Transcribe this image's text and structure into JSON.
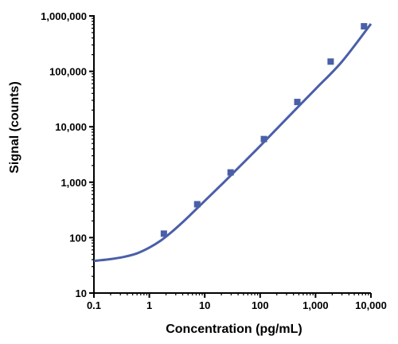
{
  "chart_data": {
    "type": "scatter",
    "title": "",
    "xlabel": "Concentration (pg/mL)",
    "ylabel": "Signal (counts)",
    "xscale": "log",
    "yscale": "log",
    "xlim": [
      0.1,
      10000
    ],
    "ylim": [
      10,
      1000000
    ],
    "x_ticks": [
      0.1,
      1,
      10,
      100,
      1000,
      10000
    ],
    "x_tick_labels": [
      "0.1",
      "1",
      "10",
      "100",
      "1,000",
      "10,000"
    ],
    "y_ticks": [
      10,
      100,
      1000,
      10000,
      100000,
      1000000
    ],
    "y_tick_labels": [
      "10",
      "100",
      "1,000",
      "10,000",
      "100,000",
      "1,000,000"
    ],
    "grid": false,
    "legend": "none",
    "colors": {
      "series": "#4a5fa8",
      "axis": "#000000"
    },
    "series": [
      {
        "type": "scatter",
        "x": [
          1.83,
          7.32,
          29.3,
          117,
          469,
          1875,
          7500
        ],
        "y": [
          118,
          400,
          1500,
          6000,
          28000,
          150000,
          650000
        ]
      },
      {
        "type": "line",
        "fit": "smooth curve",
        "x": [
          0.1,
          0.2,
          0.35,
          0.6,
          1,
          1.6,
          2.5,
          4,
          6,
          10,
          20,
          40,
          100,
          300,
          1000,
          3000,
          10000
        ],
        "y": [
          38,
          41,
          45,
          52,
          66,
          88,
          125,
          190,
          280,
          460,
          900,
          1800,
          4500,
          14000,
          48000,
          150000,
          720000
        ]
      }
    ]
  }
}
